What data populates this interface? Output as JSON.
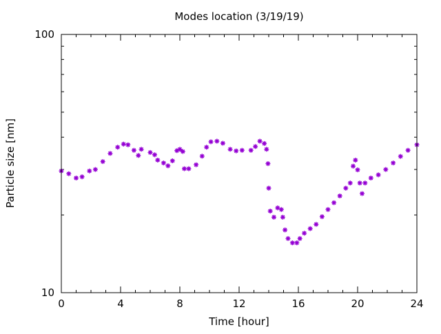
{
  "chart_data": {
    "type": "scatter",
    "title": "Modes location (3/19/19)",
    "xlabel": "Time [hour]",
    "ylabel": "Particle size [nm]",
    "xlim": [
      0,
      24
    ],
    "ylim": [
      10,
      100
    ],
    "yscale": "log",
    "grid": false,
    "x_ticks": [
      {
        "value": 0,
        "label": "0"
      },
      {
        "value": 4,
        "label": "4"
      },
      {
        "value": 8,
        "label": "8"
      },
      {
        "value": 12,
        "label": "12"
      },
      {
        "value": 16,
        "label": "16"
      },
      {
        "value": 20,
        "label": "20"
      },
      {
        "value": 24,
        "label": "24"
      }
    ],
    "y_ticks": [
      {
        "value": 10,
        "label": "10"
      },
      {
        "value": 100,
        "label": "100"
      }
    ],
    "marker_color": "#9400d3",
    "series": [
      {
        "values": [
          [
            0.0,
            29.6
          ],
          [
            0.5,
            28.9
          ],
          [
            1.0,
            27.8
          ],
          [
            1.4,
            28.1
          ],
          [
            1.9,
            29.6
          ],
          [
            2.3,
            30.0
          ],
          [
            2.8,
            32.2
          ],
          [
            3.3,
            34.6
          ],
          [
            3.8,
            36.6
          ],
          [
            4.2,
            37.6
          ],
          [
            4.5,
            37.4
          ],
          [
            4.9,
            35.6
          ],
          [
            5.2,
            34.0
          ],
          [
            5.4,
            35.9
          ],
          [
            6.0,
            34.9
          ],
          [
            6.3,
            34.2
          ],
          [
            6.5,
            32.6
          ],
          [
            6.9,
            31.8
          ],
          [
            7.2,
            31.0
          ],
          [
            7.5,
            32.4
          ],
          [
            7.8,
            35.5
          ],
          [
            8.0,
            35.9
          ],
          [
            8.2,
            35.2
          ],
          [
            8.3,
            30.2
          ],
          [
            8.6,
            30.2
          ],
          [
            9.1,
            31.3
          ],
          [
            9.5,
            33.8
          ],
          [
            9.8,
            36.6
          ],
          [
            10.1,
            38.4
          ],
          [
            10.5,
            38.6
          ],
          [
            10.9,
            37.9
          ],
          [
            11.4,
            35.9
          ],
          [
            11.8,
            35.4
          ],
          [
            12.2,
            35.6
          ],
          [
            12.8,
            35.6
          ],
          [
            13.1,
            36.8
          ],
          [
            13.4,
            38.6
          ],
          [
            13.7,
            37.8
          ],
          [
            13.85,
            35.9
          ],
          [
            13.95,
            31.6
          ],
          [
            14.0,
            25.4
          ],
          [
            14.1,
            20.7
          ],
          [
            14.35,
            19.6
          ],
          [
            14.6,
            21.3
          ],
          [
            14.85,
            21.0
          ],
          [
            14.95,
            19.6
          ],
          [
            15.1,
            17.5
          ],
          [
            15.3,
            16.2
          ],
          [
            15.6,
            15.6
          ],
          [
            15.9,
            15.6
          ],
          [
            16.1,
            16.2
          ],
          [
            16.4,
            17.0
          ],
          [
            16.8,
            17.7
          ],
          [
            17.2,
            18.4
          ],
          [
            17.6,
            19.7
          ],
          [
            18.0,
            21.0
          ],
          [
            18.4,
            22.3
          ],
          [
            18.8,
            23.7
          ],
          [
            19.2,
            25.4
          ],
          [
            19.5,
            26.6
          ],
          [
            19.7,
            30.9
          ],
          [
            19.85,
            32.6
          ],
          [
            20.0,
            29.9
          ],
          [
            20.15,
            26.6
          ],
          [
            20.3,
            24.2
          ],
          [
            20.5,
            26.6
          ],
          [
            20.9,
            27.8
          ],
          [
            21.4,
            28.6
          ],
          [
            21.9,
            30.0
          ],
          [
            22.4,
            31.8
          ],
          [
            22.9,
            33.7
          ],
          [
            23.4,
            35.6
          ],
          [
            24.0,
            37.4
          ]
        ]
      }
    ]
  }
}
